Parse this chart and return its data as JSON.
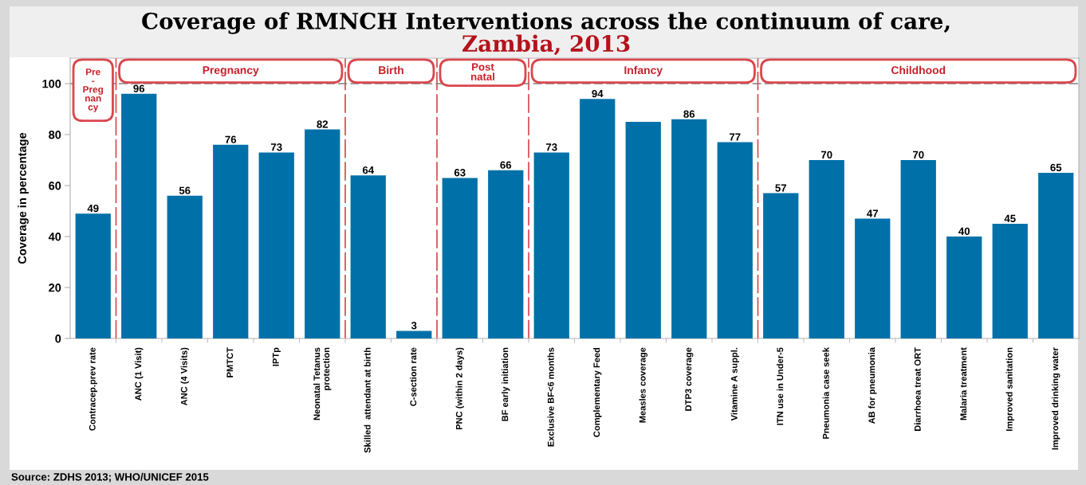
{
  "chart_data": {
    "type": "bar",
    "title": "Coverage of RMNCH Interventions across the continuum of care,",
    "subtitle": "Zambia, 2013",
    "ylabel": "Coverage in percentage",
    "categories": [
      "Contracep.prev rate",
      "ANC (1 Visit)",
      "ANC (4 Visits)",
      "PMTCT",
      "IPTp",
      "Neonatal Tetanus\nprotection",
      "Skilled  attendant at birth",
      "C-section rate",
      "PNC (within 2 days)",
      "BF early initiation",
      "Exclusive BF<6 months",
      "Complementary Feed",
      "Measles coverage",
      "DTP3 coverage",
      "Vitamine A suppl.",
      "ITN use in Under-5",
      "Pneumonia case seek",
      "AB for pneumonia",
      "Diarrhoea treat ORT",
      "Malaria treatment",
      "Improved sanitation",
      "Improved drinking water"
    ],
    "values": [
      49,
      96,
      56,
      76,
      73,
      82,
      64,
      3,
      63,
      66,
      73,
      94,
      85,
      86,
      77,
      57,
      70,
      47,
      70,
      40,
      45,
      65
    ],
    "value_labels": [
      "49",
      "96",
      "56",
      "76",
      "73",
      "82",
      "64",
      "3",
      "63",
      "66",
      "73",
      "94",
      null,
      "86",
      "77",
      "57",
      "70",
      "47",
      "70",
      "40",
      "45",
      "65"
    ],
    "color": "#0070a8",
    "ylim": [
      0,
      110
    ],
    "yticks": [
      0,
      20,
      40,
      60,
      80,
      100
    ],
    "grid": false,
    "ref_lines": [
      {
        "axis": "y",
        "value": 100,
        "color": "#808080",
        "line_style": "dashed"
      }
    ],
    "bands": [
      {
        "axis": "x",
        "from": "Contracep.prev rate",
        "to": "Contracep.prev rate",
        "label": "Pre\n-\nPreg\nnan\ncy",
        "color": "#d9474d"
      },
      {
        "axis": "x",
        "from": "ANC (1 Visit)",
        "to": "Neonatal Tetanus\nprotection",
        "label": "Pregnancy",
        "color": "#d9474d"
      },
      {
        "axis": "x",
        "from": "Skilled  attendant at birth",
        "to": "C-section rate",
        "label": "Birth",
        "color": "#d9474d"
      },
      {
        "axis": "x",
        "from": "PNC (within 2 days)",
        "to": "BF early initiation",
        "label": "Post\nnatal",
        "color": "#d9474d"
      },
      {
        "axis": "x",
        "from": "Exclusive BF<6 months",
        "to": "Vitamine A suppl.",
        "label": "Infancy",
        "color": "#d9474d"
      },
      {
        "axis": "x",
        "from": "ITN use in Under-5",
        "to": "Improved drinking water",
        "label": "Childhood",
        "color": "#d9474d"
      }
    ],
    "annotations": [
      "Source: ZDHS 2013; WHO/UNICEF 2015"
    ]
  }
}
